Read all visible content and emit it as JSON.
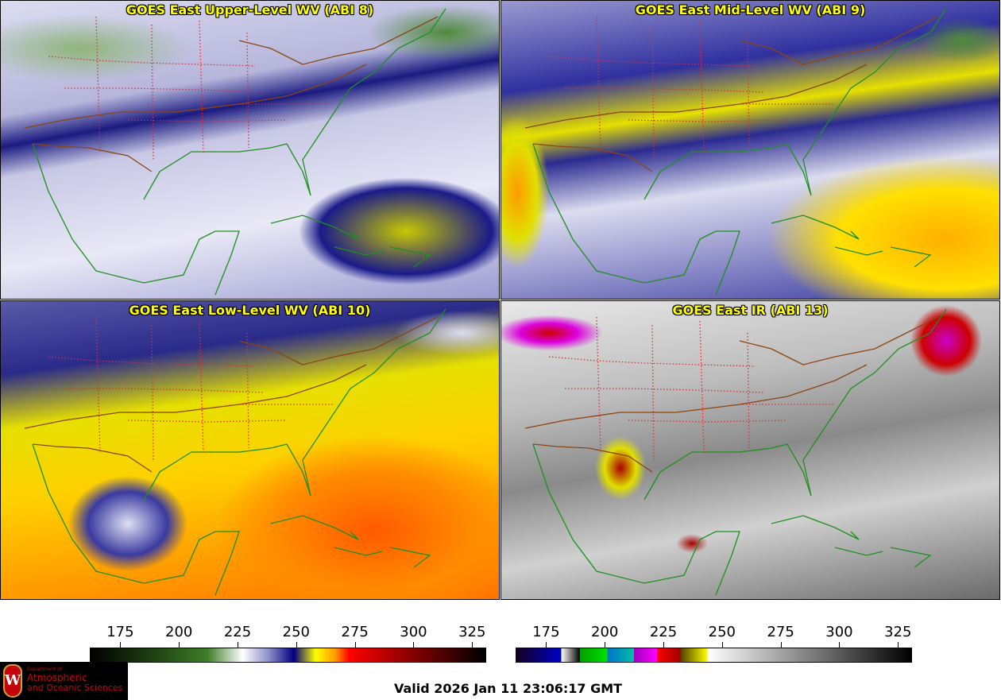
{
  "panels": [
    {
      "title": "GOES East Upper-Level WV (ABI 8)"
    },
    {
      "title": "GOES East Mid-Level WV (ABI 9)"
    },
    {
      "title": "GOES East Low-Level WV (ABI 10)"
    },
    {
      "title": "GOES East IR (ABI 13)"
    }
  ],
  "colorbars": [
    {
      "name": "water-vapor",
      "ticks": [
        "175",
        "200",
        "225",
        "250",
        "275",
        "300",
        "325"
      ],
      "range": [
        162,
        331
      ]
    },
    {
      "name": "infrared",
      "ticks": [
        "175",
        "200",
        "225",
        "250",
        "275",
        "300",
        "325"
      ],
      "range": [
        162,
        331
      ]
    }
  ],
  "logo": {
    "line1": "Department of",
    "line2": "Atmospheric",
    "line3": "and Oceanic Sciences",
    "crest": "W"
  },
  "valid_time": "Valid 2026 Jan 11 23:06:17 GMT",
  "colors": {
    "title": "#ffff00",
    "coast": "#1f8f1f",
    "states": "#ff2020",
    "borders": "#8b4513"
  }
}
